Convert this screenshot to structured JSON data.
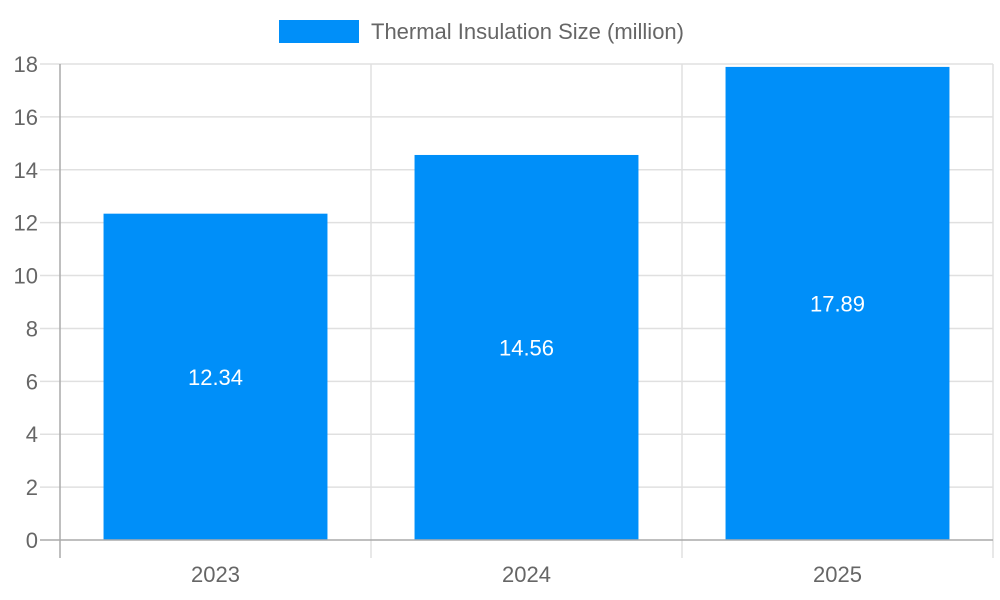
{
  "chart_data": {
    "type": "bar",
    "categories": [
      "2023",
      "2024",
      "2025"
    ],
    "series": [
      {
        "name": "Thermal Insulation Size (million)",
        "values": [
          12.34,
          14.56,
          17.89
        ],
        "color": "#008ff9"
      }
    ],
    "data_labels": [
      "12.34",
      "14.56",
      "17.89"
    ],
    "ylim": [
      0,
      18
    ],
    "yticks": [
      "0",
      "2",
      "4",
      "6",
      "8",
      "10",
      "12",
      "14",
      "16",
      "18"
    ],
    "grid": true,
    "legend_position": "top",
    "xlabel": "",
    "ylabel": ""
  }
}
